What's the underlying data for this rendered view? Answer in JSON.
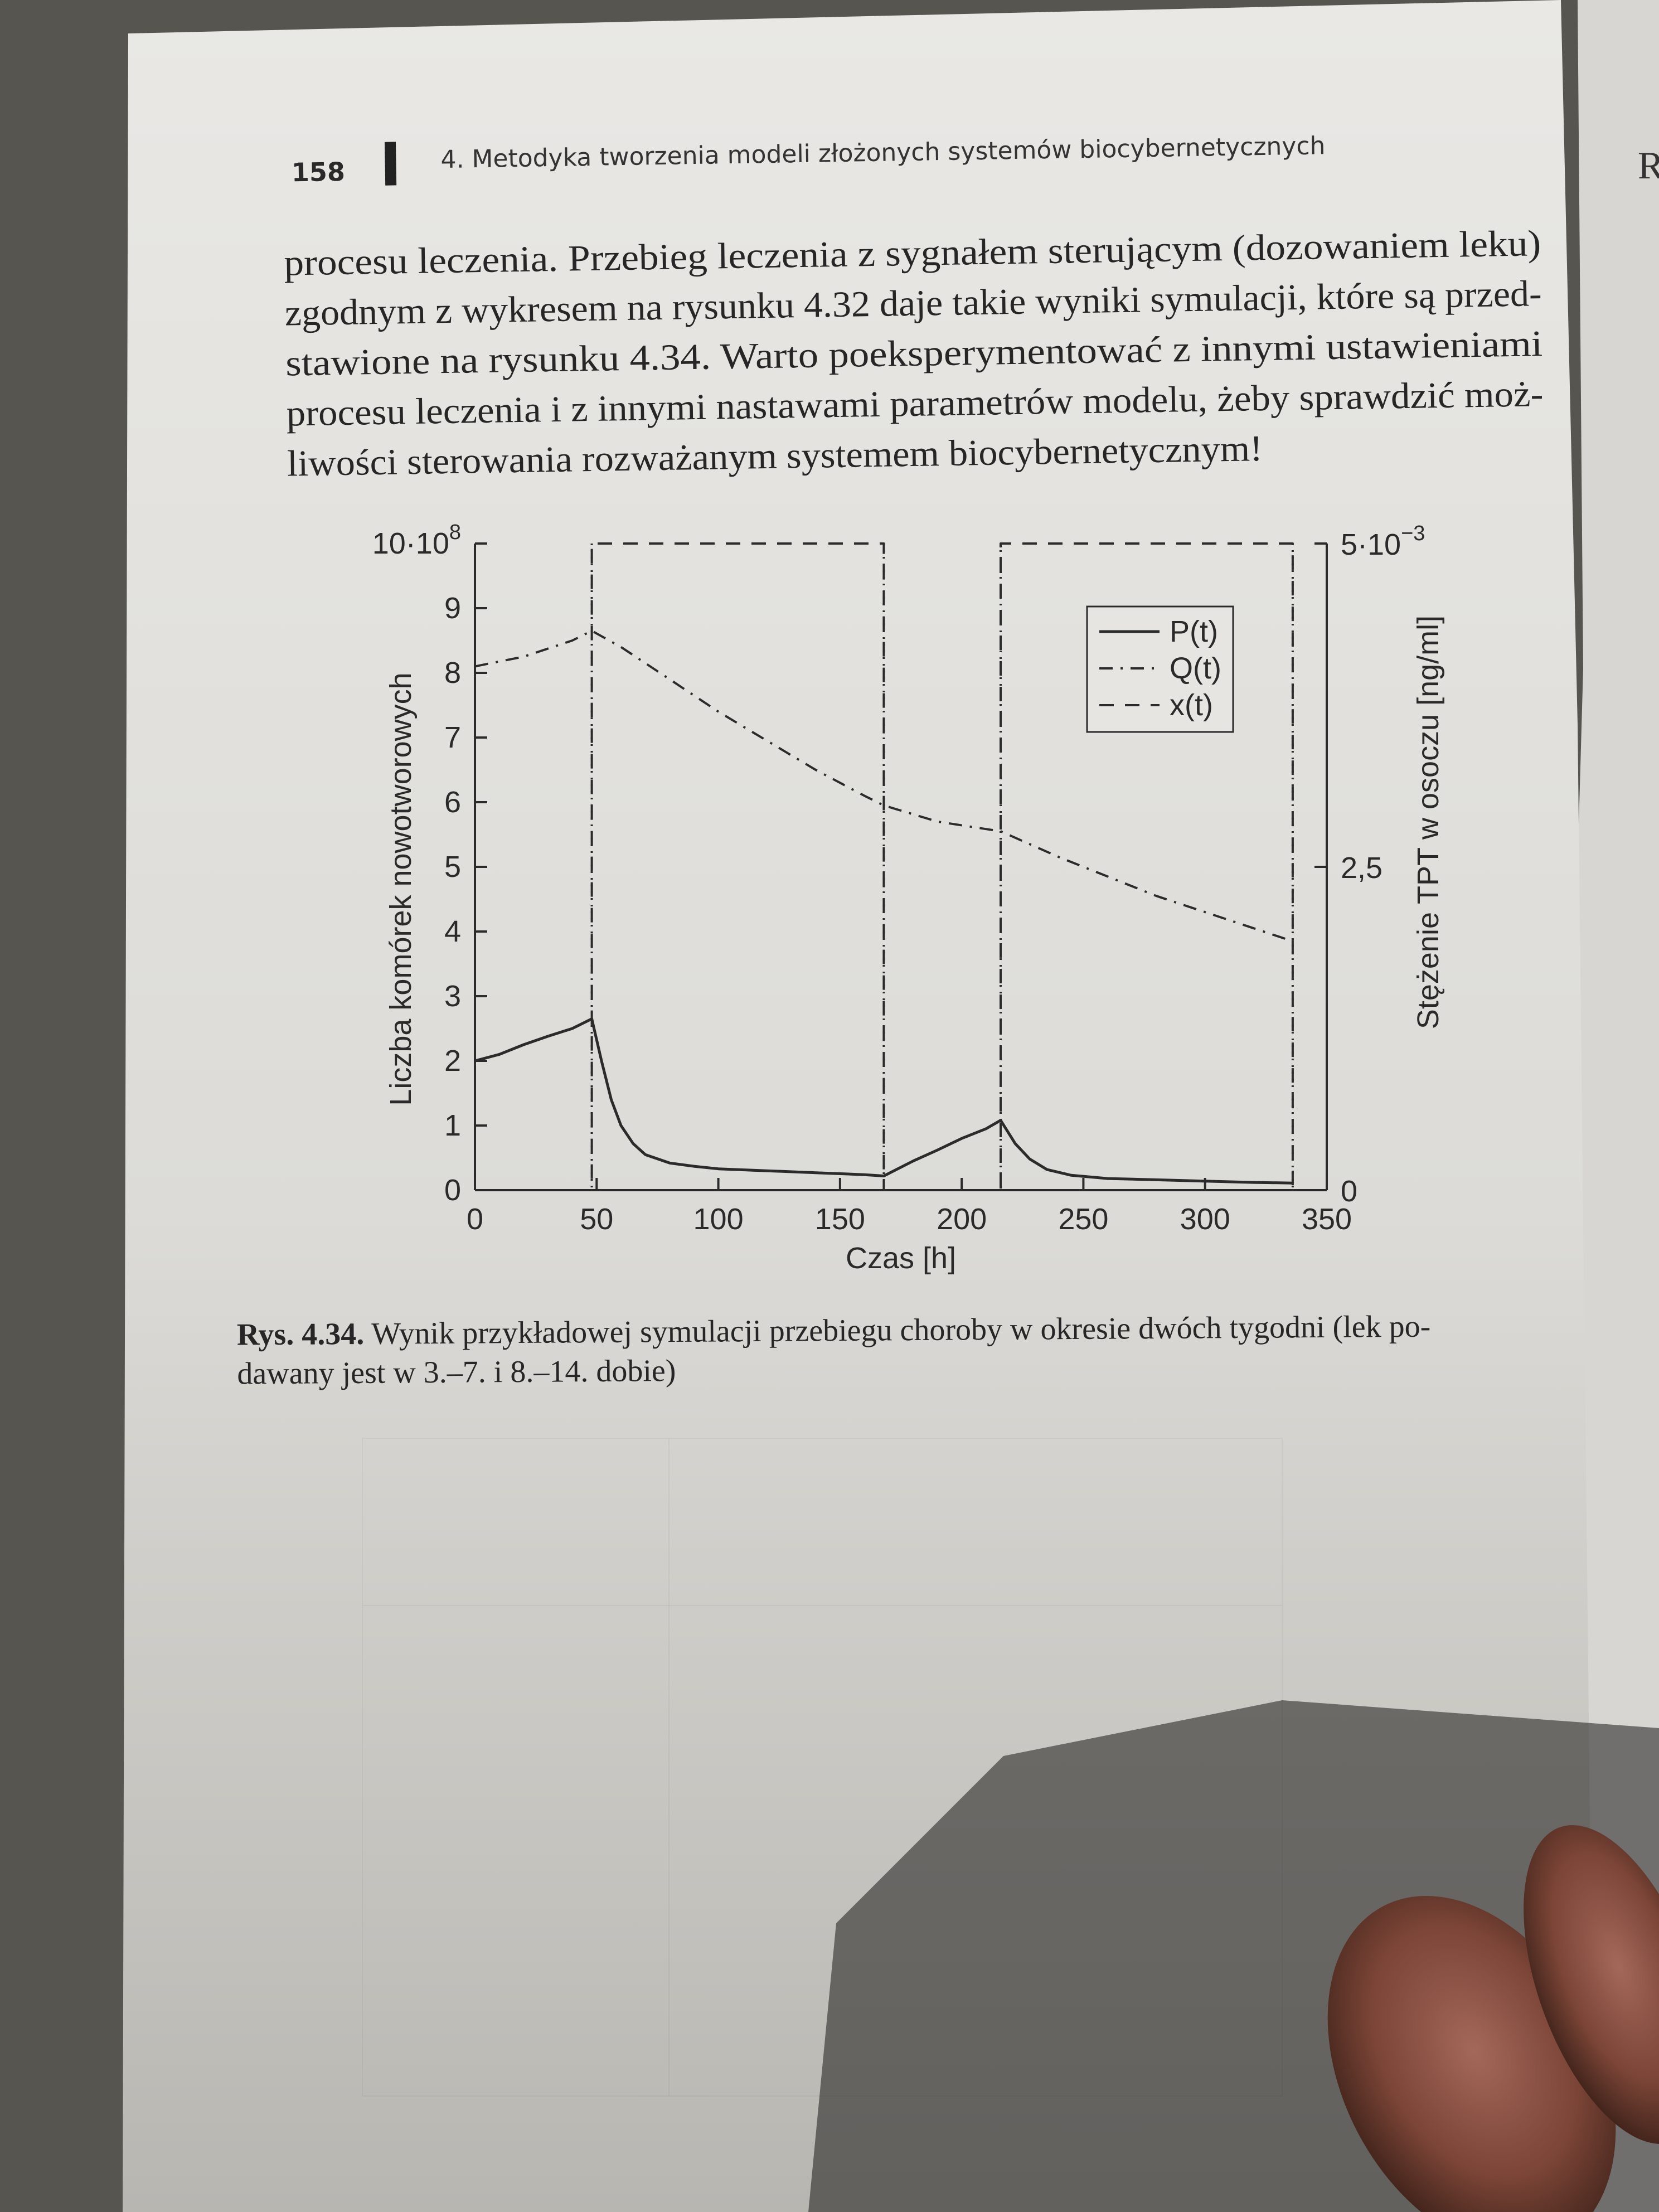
{
  "header": {
    "page_number": "158",
    "chapter_title": "4. Metodyka tworzenia modeli złożonych systemów biocybernetycznych"
  },
  "body_lines": [
    "procesu leczenia. Przebieg leczenia z sygnałem sterującym (dozowaniem leku)",
    "zgodnym z wykresem na rysunku 4.32 daje takie wyniki symulacji, które są przed-",
    "stawione na rysunku 4.34. Warto poeksperymentować z innymi ustawieniami",
    "procesu leczenia i z innymi nastawami parametrów modelu, żeby sprawdzić moż-",
    "liwości sterowania rozważanym systemem biocybernetycznym!"
  ],
  "margin_glyph": "R",
  "chart_data": {
    "type": "line",
    "title": "",
    "xlabel": "Czas [h]",
    "ylabel": "Liczba komórek nowotworowych",
    "y2label": "Stężenie TPT w osoczu [ng/ml]",
    "xlim": [
      0,
      350
    ],
    "ylim": [
      0,
      10
    ],
    "y2lim": [
      0,
      5
    ],
    "x_ticks": [
      "0",
      "50",
      "100",
      "150",
      "200",
      "250",
      "300",
      "350"
    ],
    "y_ticks": [
      "0",
      "1",
      "2",
      "3",
      "4",
      "5",
      "6",
      "7",
      "8",
      "9"
    ],
    "y_top_label": {
      "base": "10·10",
      "exp": "8"
    },
    "y2_ticks": [
      "0",
      "2,5"
    ],
    "y2_top_label": {
      "base": "5·10",
      "exp": "−3"
    },
    "y2_top_value": 5,
    "y2_mid_value": 2.5,
    "dosing_intervals": [
      [
        48,
        168
      ],
      [
        216,
        336
      ]
    ],
    "grid": false,
    "legend_position": "top-right",
    "series": [
      {
        "name": "P(t)",
        "style": "solid",
        "x": [
          0,
          10,
          20,
          30,
          40,
          48,
          52,
          56,
          60,
          65,
          70,
          80,
          90,
          100,
          120,
          140,
          160,
          168,
          180,
          190,
          200,
          210,
          216,
          222,
          228,
          235,
          245,
          260,
          280,
          300,
          320,
          336
        ],
        "y": [
          2.0,
          2.1,
          2.25,
          2.38,
          2.5,
          2.65,
          2.0,
          1.4,
          1.0,
          0.72,
          0.55,
          0.42,
          0.37,
          0.33,
          0.3,
          0.27,
          0.24,
          0.22,
          0.45,
          0.62,
          0.8,
          0.95,
          1.08,
          0.72,
          0.48,
          0.32,
          0.23,
          0.18,
          0.16,
          0.14,
          0.12,
          0.11
        ]
      },
      {
        "name": "Q(t)",
        "style": "dashdot",
        "x": [
          0,
          20,
          40,
          48,
          60,
          80,
          100,
          120,
          140,
          160,
          168,
          190,
          216,
          240,
          260,
          280,
          300,
          320,
          336
        ],
        "y": [
          8.1,
          8.25,
          8.5,
          8.65,
          8.4,
          7.9,
          7.4,
          6.95,
          6.5,
          6.1,
          5.95,
          5.7,
          5.55,
          5.15,
          4.85,
          4.55,
          4.3,
          4.05,
          3.85
        ]
      },
      {
        "name": "x(t)",
        "style": "dashed",
        "axis": "right",
        "x": [
          0,
          48,
          48,
          168,
          168,
          216,
          216,
          336,
          336,
          350
        ],
        "y": [
          0,
          0,
          5,
          5,
          0,
          0,
          5,
          5,
          0,
          0
        ]
      }
    ]
  },
  "caption": {
    "label": "Rys. 4.34.",
    "line1": "Wynik przykładowej symulacji przebiegu choroby w okresie dwóch tygodni (lek po-",
    "line2": "dawany jest w 3.–7. i 8.–14. dobie)"
  }
}
